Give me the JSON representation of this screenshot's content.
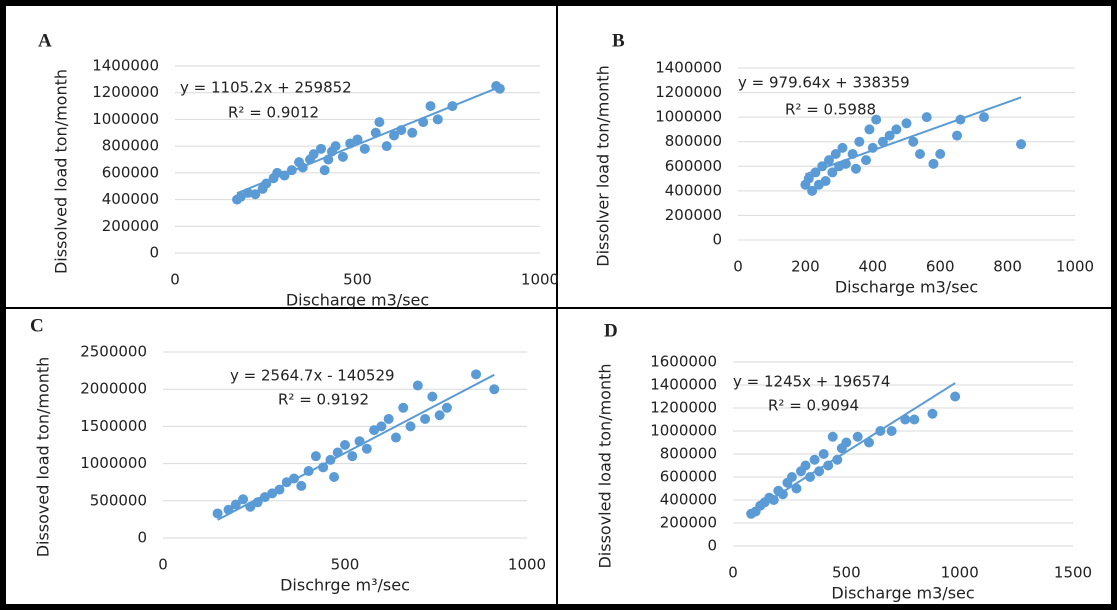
{
  "chart_data": [
    {
      "type": "scatter",
      "label": "A",
      "xlabel": "Discharge m3/sec",
      "ylabel": "Dissolved load ton/month",
      "equation": "y = 1105.2x + 259852",
      "r2": "R² = 0.9012",
      "color": "#5b9bd5",
      "grid": true,
      "xlim": [
        0,
        1000
      ],
      "xticks": [
        0,
        500,
        1000
      ],
      "ylim": [
        0,
        1400000
      ],
      "yticks": [
        0,
        200000,
        400000,
        600000,
        800000,
        1000000,
        1200000,
        1400000
      ],
      "trendline": {
        "slope": 1105.2,
        "intercept": 259852,
        "x": [
          170,
          890
        ]
      },
      "x": [
        170,
        180,
        200,
        220,
        240,
        250,
        270,
        280,
        300,
        320,
        340,
        350,
        370,
        380,
        400,
        410,
        420,
        430,
        440,
        460,
        480,
        500,
        520,
        550,
        560,
        580,
        600,
        620,
        650,
        680,
        700,
        720,
        760,
        880,
        890
      ],
      "values": [
        400000,
        420000,
        450000,
        440000,
        480000,
        520000,
        560000,
        600000,
        580000,
        620000,
        680000,
        640000,
        700000,
        740000,
        780000,
        620000,
        700000,
        760000,
        800000,
        720000,
        820000,
        850000,
        780000,
        900000,
        980000,
        800000,
        880000,
        920000,
        900000,
        980000,
        1100000,
        1000000,
        1100000,
        1250000,
        1230000
      ]
    },
    {
      "type": "scatter",
      "label": "B",
      "xlabel": "Discharge m3/sec",
      "ylabel": "Dissolver load ton/month",
      "equation": "y = 979.64x + 338359",
      "r2": "R² = 0.5988",
      "color": "#5b9bd5",
      "grid": true,
      "xlim": [
        0,
        1000
      ],
      "xticks": [
        0,
        200,
        400,
        600,
        800,
        1000
      ],
      "ylim": [
        0,
        1400000
      ],
      "yticks": [
        0,
        200000,
        400000,
        600000,
        800000,
        1000000,
        1200000,
        1400000
      ],
      "trendline": {
        "slope": 979.64,
        "intercept": 338359,
        "x": [
          200,
          840
        ]
      },
      "x": [
        200,
        210,
        220,
        230,
        240,
        250,
        260,
        270,
        280,
        290,
        300,
        310,
        320,
        340,
        350,
        360,
        380,
        390,
        400,
        410,
        430,
        450,
        470,
        500,
        520,
        540,
        560,
        580,
        600,
        650,
        660,
        730,
        840
      ],
      "values": [
        450000,
        500000,
        400000,
        550000,
        450000,
        600000,
        480000,
        650000,
        550000,
        700000,
        600000,
        750000,
        620000,
        700000,
        580000,
        800000,
        650000,
        900000,
        750000,
        980000,
        800000,
        850000,
        900000,
        950000,
        800000,
        700000,
        1000000,
        620000,
        700000,
        850000,
        980000,
        1000000,
        780000
      ]
    },
    {
      "type": "scatter",
      "label": "C",
      "xlabel": "Dischrge m³/sec",
      "ylabel": "Dissoved load ton/month",
      "equation": "y = 2564.7x - 140529",
      "r2": "R² = 0.9192",
      "color": "#5b9bd5",
      "grid": true,
      "xlim": [
        0,
        1000
      ],
      "xticks": [
        0,
        500,
        1000
      ],
      "ylim": [
        0,
        2500000
      ],
      "yticks": [
        0,
        500000,
        1000000,
        1500000,
        2000000,
        2500000
      ],
      "trendline": {
        "slope": 2564.7,
        "intercept": -140529,
        "x": [
          150,
          910
        ]
      },
      "x": [
        150,
        180,
        200,
        220,
        240,
        260,
        280,
        300,
        320,
        340,
        360,
        380,
        400,
        420,
        440,
        460,
        470,
        480,
        500,
        520,
        540,
        560,
        580,
        600,
        620,
        640,
        660,
        680,
        700,
        720,
        740,
        760,
        780,
        860,
        910
      ],
      "values": [
        330000,
        380000,
        450000,
        520000,
        420000,
        480000,
        550000,
        600000,
        650000,
        750000,
        800000,
        700000,
        900000,
        1100000,
        950000,
        1050000,
        820000,
        1150000,
        1250000,
        1100000,
        1300000,
        1200000,
        1450000,
        1500000,
        1600000,
        1350000,
        1750000,
        1500000,
        2050000,
        1600000,
        1900000,
        1650000,
        1750000,
        2200000,
        2000000
      ]
    },
    {
      "type": "scatter",
      "label": "D",
      "xlabel": "Discharge m3/sec",
      "ylabel": "Dissovled load ton/month",
      "equation": "y = 1245x + 196574",
      "r2": "R² = 0.9094",
      "color": "#5b9bd5",
      "grid": true,
      "xlim": [
        0,
        1500
      ],
      "xticks": [
        0,
        500,
        1000,
        1500
      ],
      "ylim": [
        0,
        1600000
      ],
      "yticks": [
        0,
        200000,
        400000,
        600000,
        800000,
        1000000,
        1200000,
        1400000,
        1600000
      ],
      "trendline": {
        "slope": 1245,
        "intercept": 196574,
        "x": [
          80,
          980
        ]
      },
      "x": [
        80,
        100,
        120,
        140,
        160,
        180,
        200,
        220,
        240,
        260,
        280,
        300,
        320,
        340,
        360,
        380,
        400,
        420,
        440,
        460,
        480,
        500,
        550,
        600,
        650,
        700,
        760,
        800,
        880,
        980
      ],
      "values": [
        280000,
        300000,
        350000,
        380000,
        420000,
        400000,
        480000,
        450000,
        550000,
        600000,
        500000,
        650000,
        700000,
        600000,
        750000,
        650000,
        800000,
        700000,
        950000,
        750000,
        850000,
        900000,
        950000,
        900000,
        1000000,
        1000000,
        1100000,
        1100000,
        1150000,
        1300000
      ]
    }
  ]
}
